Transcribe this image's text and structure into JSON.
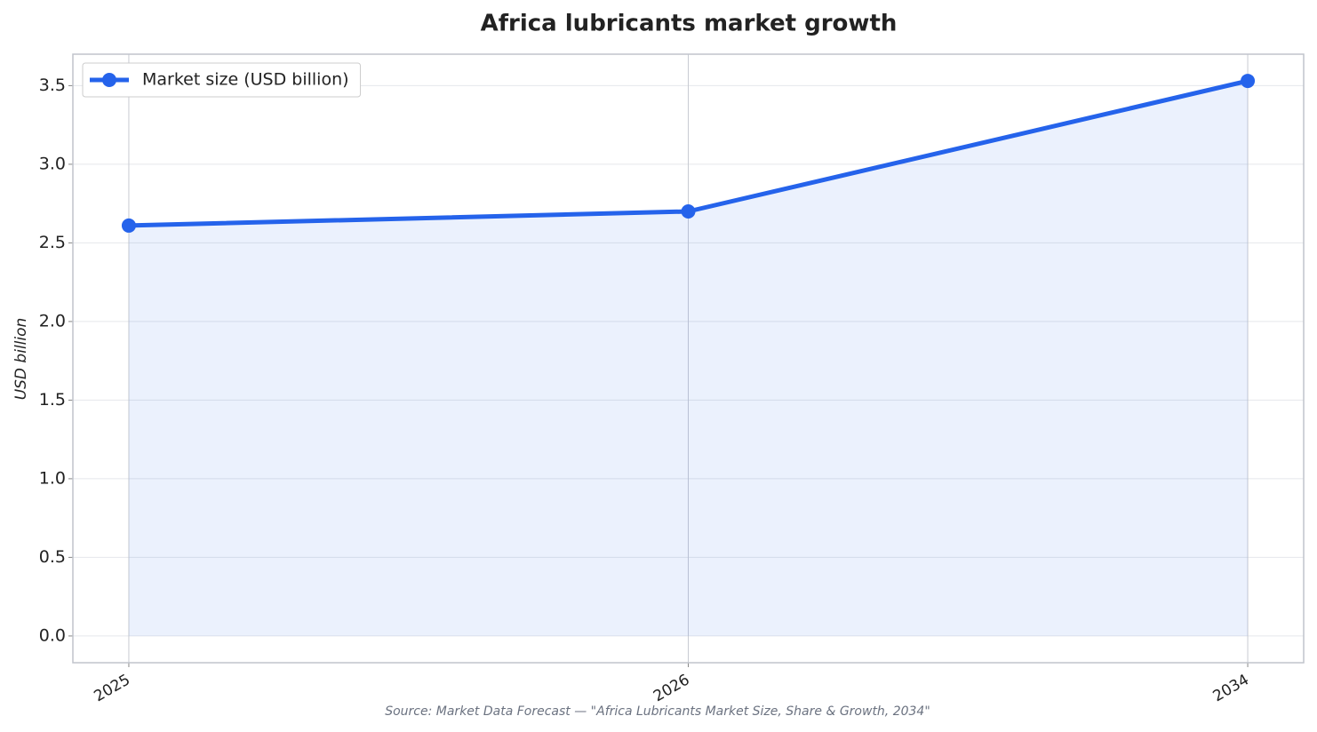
{
  "chart_data": {
    "type": "line",
    "title": "Africa lubricants market growth",
    "y_label": "USD billion",
    "source": "Source: Market Data Forecast — \"Africa Lubricants Market Size, Share & Growth, 2034\"",
    "categories": [
      "2025",
      "2026",
      "2034"
    ],
    "series": [
      {
        "name": "Market size (USD billion)",
        "color": "#2563eb",
        "values": [
          2.61,
          2.7,
          3.53
        ]
      }
    ],
    "area_fill": true,
    "ylim": [
      -0.17,
      3.7
    ],
    "yticks": [
      {
        "value": 0,
        "label": "0.0"
      },
      {
        "value": 0.5,
        "label": "0.5"
      },
      {
        "value": 1,
        "label": "1.0"
      },
      {
        "value": 1.5,
        "label": "1.5"
      },
      {
        "value": 2,
        "label": "2.0"
      },
      {
        "value": 2.5,
        "label": "2.5"
      },
      {
        "value": 3,
        "label": "3.0"
      },
      {
        "value": 3.5,
        "label": "3.5"
      }
    ],
    "grid": true,
    "legend": "upper-left"
  }
}
